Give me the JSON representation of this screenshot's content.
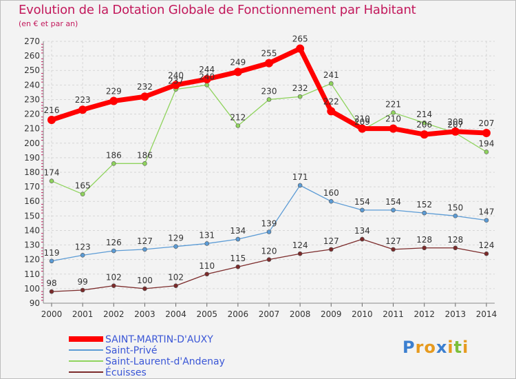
{
  "title": "Evolution de la Dotation Globale de Fonctionnement par Habitant",
  "subtitle": "(en € et par an)",
  "logo": {
    "text": "Proxiti",
    "letters": [
      "P",
      "r",
      "o",
      "x",
      "i",
      "t",
      "i"
    ],
    "colors": [
      "#3b7fd0",
      "#e69a1f",
      "#e69a1f",
      "#3b7fd0",
      "#e69a1f",
      "#7cbf3a",
      "#e69a1f"
    ]
  },
  "chart_data": {
    "type": "line",
    "x": [
      "2000",
      "2001",
      "2002",
      "2003",
      "2004",
      "2005",
      "2006",
      "2007",
      "2008",
      "2009",
      "2010",
      "2011",
      "2012",
      "2013",
      "2014"
    ],
    "ylim": [
      90,
      270
    ],
    "yticks": [
      "90",
      "100",
      "110",
      "120",
      "130",
      "140",
      "150",
      "160",
      "170",
      "180",
      "190",
      "200",
      "210",
      "220",
      "230",
      "240",
      "250",
      "260",
      "270"
    ],
    "grid": true,
    "legend_position": "bottom-left",
    "series": [
      {
        "name": "SAINT-MARTIN-D'AUXY",
        "color": "#ff0000",
        "values": [
          216,
          223,
          229,
          232,
          240,
          244,
          249,
          255,
          265,
          222,
          210,
          210,
          206,
          208,
          207
        ],
        "labels": [
          "216",
          "223",
          "229",
          "232",
          "240",
          "244",
          "249",
          "255",
          "265",
          "222",
          "210",
          "210",
          "206",
          "208",
          "207"
        ]
      },
      {
        "name": "Saint-Privé",
        "color": "#5b9bd5",
        "values": [
          119,
          123,
          126,
          127,
          129,
          131,
          134,
          139,
          171,
          160,
          154,
          154,
          152,
          150,
          147
        ],
        "labels": [
          "119",
          "123",
          "126",
          "127",
          "129",
          "131",
          "134",
          "139",
          "171",
          "160",
          "154",
          "154",
          "152",
          "150",
          "147"
        ]
      },
      {
        "name": "Saint-Laurent-d'Andenay",
        "color": "#8fd35d",
        "values": [
          174,
          165,
          186,
          186,
          237,
          240,
          212,
          230,
          232,
          241,
          209,
          221,
          214,
          207,
          194
        ],
        "labels": [
          "174",
          "165",
          "186",
          "186",
          "237",
          "240",
          "212",
          "230",
          "232",
          "241",
          "209",
          "221",
          "214",
          "207",
          "194"
        ]
      },
      {
        "name": "Écuisses",
        "color": "#7b2a2a",
        "values": [
          98,
          99,
          102,
          100,
          102,
          110,
          115,
          120,
          124,
          127,
          134,
          127,
          128,
          128,
          124
        ],
        "labels": [
          "98",
          "99",
          "102",
          "100",
          "102",
          "110",
          "115",
          "120",
          "124",
          "127",
          "134",
          "127",
          "128",
          "128",
          "124"
        ]
      }
    ]
  }
}
